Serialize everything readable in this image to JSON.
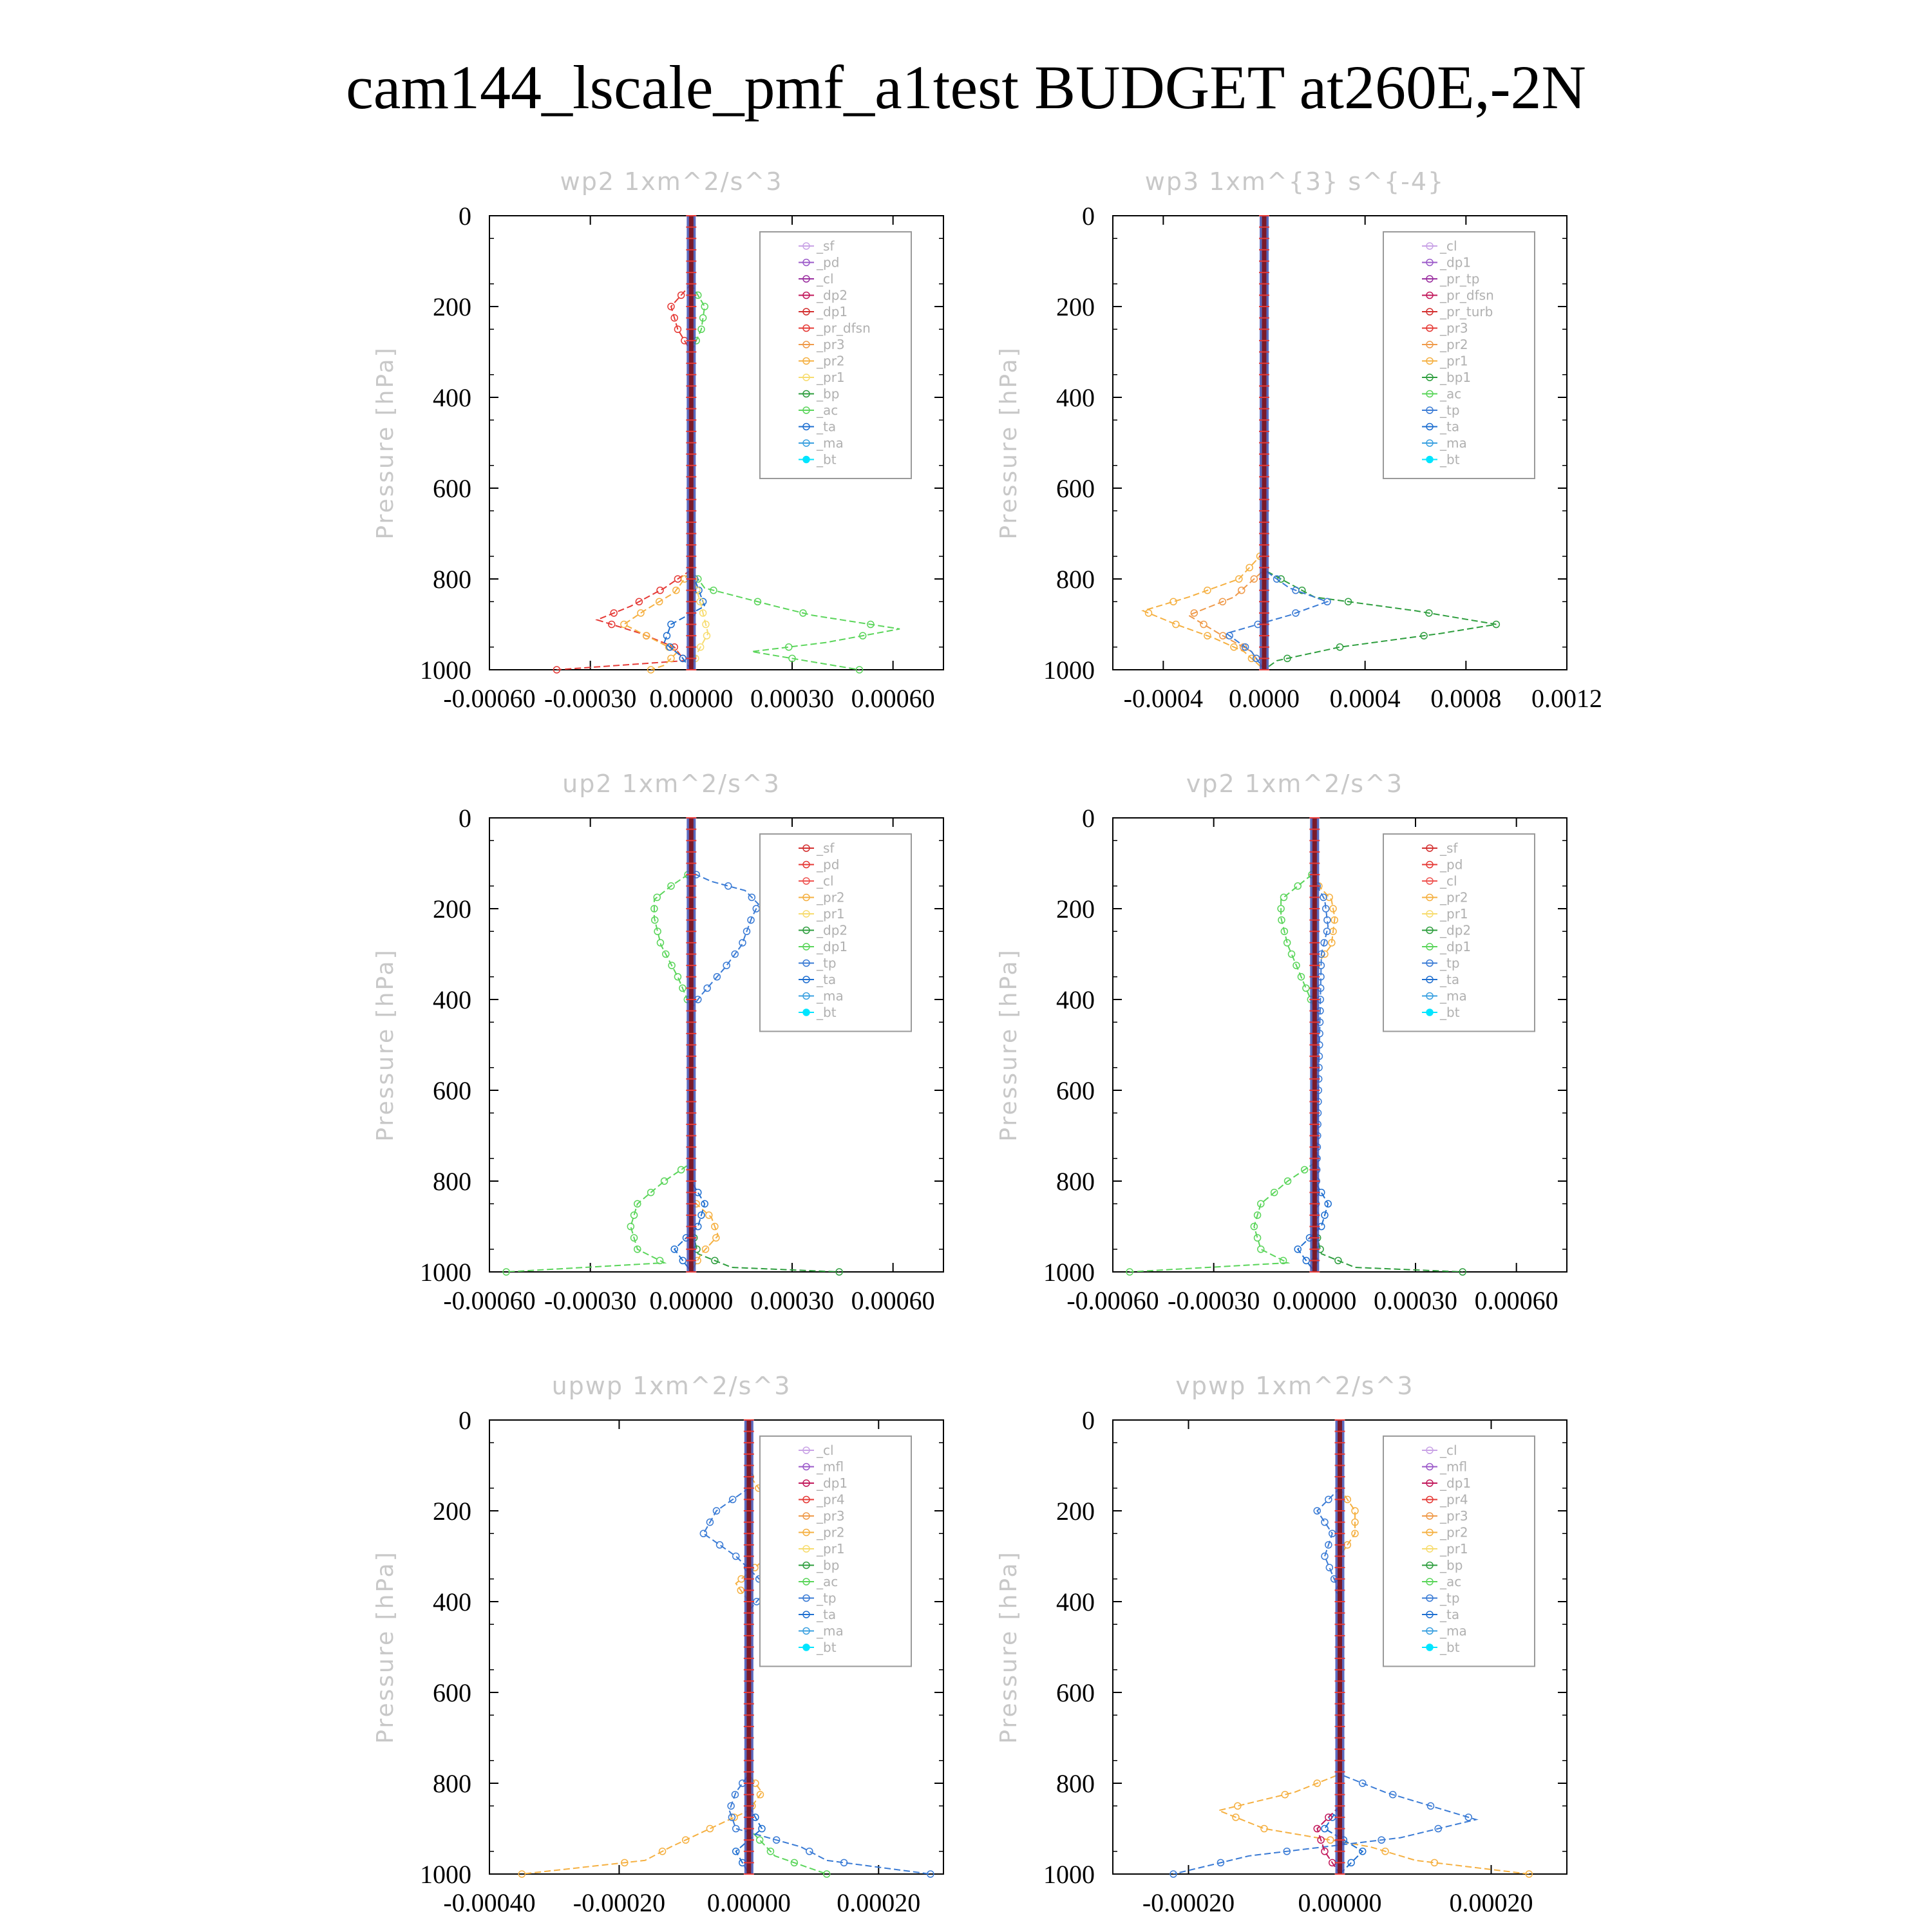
{
  "title": "cam144_lscale_pmf_a1test  BUDGET at260E,-2N",
  "colors": {
    "frame": "#000000",
    "legend_border": "#9a9a9a",
    "legend_text": "#b0b0b0",
    "panel_title": "#c8c8c8",
    "zero_line": "#7a1a2a"
  },
  "chart_data": [
    {
      "type": "line",
      "panel_title": "wp2   1xm^2/s^3",
      "ylabel": "Pressure [hPa]",
      "ylim": [
        1000,
        0
      ],
      "xlim": [
        -0.0006,
        0.00075
      ],
      "xticks": [
        "-0.00060",
        "-0.00030",
        "0.00000",
        "0.00030",
        "0.00060"
      ],
      "xtick_values": [
        -0.0006,
        -0.0003,
        0.0,
        0.0003,
        0.0006
      ],
      "yticks": [
        "0",
        "200",
        "400",
        "600",
        "800",
        "1000"
      ],
      "legend": [
        "_sf",
        "_pd",
        "_cl",
        "_dp2",
        "_dp1",
        "_pr_dfsn",
        "_pr3",
        "_pr2",
        "_pr1",
        "_bp",
        "_ac",
        "_ta",
        "_ma",
        "_bt"
      ],
      "legend_colors": [
        "#c9a3e6",
        "#9b59c9",
        "#9b2fa0",
        "#c2185b",
        "#d32f2f",
        "#e53935",
        "#ef9a4a",
        "#f5b041",
        "#f7dc6f",
        "#2e9e3e",
        "#5ad55a",
        "#1f6fd0",
        "#3aa0e0",
        "#00e5ff"
      ],
      "series": [
        {
          "name": "_dp1",
          "color": "#e53935",
          "pressure": [
            0,
            150,
            200,
            250,
            300,
            780,
            820,
            860,
            890,
            920,
            950,
            980,
            1000
          ],
          "values": [
            0,
            0,
            -6e-05,
            -4e-05,
            0,
            0,
            -8e-05,
            -0.00018,
            -0.00028,
            -0.00015,
            -5e-05,
            -2e-05,
            -0.0004
          ]
        },
        {
          "name": "_pr2",
          "color": "#f5b041",
          "pressure": [
            0,
            780,
            830,
            870,
            900,
            930,
            960,
            990,
            1000
          ],
          "values": [
            0,
            0,
            -5e-05,
            -0.00014,
            -0.0002,
            -0.00012,
            -4e-05,
            -8e-05,
            -0.00012
          ]
        },
        {
          "name": "_ac",
          "color": "#5ad55a",
          "pressure": [
            0,
            150,
            200,
            250,
            300,
            780,
            820,
            860,
            880,
            910,
            940,
            960,
            1000
          ],
          "values": [
            0,
            0,
            4e-05,
            3e-05,
            0,
            0,
            4e-05,
            0.00025,
            0.00036,
            0.00062,
            0.0004,
            0.00018,
            0.0005
          ]
        },
        {
          "name": "_ta",
          "color": "#1f6fd0",
          "pressure": [
            0,
            780,
            820,
            860,
            900,
            940,
            970,
            1000
          ],
          "values": [
            0,
            0,
            2e-05,
            4e-05,
            -6e-05,
            -8e-05,
            -3e-05,
            0
          ]
        },
        {
          "name": "_pr1",
          "color": "#f7dc6f",
          "pressure": [
            0,
            780,
            860,
            920,
            960,
            1000
          ],
          "values": [
            0,
            0,
            3e-05,
            5e-05,
            2e-05,
            0
          ]
        }
      ]
    },
    {
      "type": "line",
      "panel_title": "wp3   1xm^{3} s^{-4}",
      "ylabel": "Pressure [hPa]",
      "ylim": [
        1000,
        0
      ],
      "xlim": [
        -0.0006,
        0.0012
      ],
      "xticks": [
        "-0.0004",
        "0.0000",
        "0.0004",
        "0.0008",
        "0.0012"
      ],
      "xtick_values": [
        -0.0004,
        0.0,
        0.0004,
        0.0008,
        0.0012
      ],
      "yticks": [
        "0",
        "200",
        "400",
        "600",
        "800",
        "1000"
      ],
      "legend": [
        "_cl",
        "_dp1",
        "_pr_tp",
        "_pr_dfsn",
        "_pr_turb",
        "_pr3",
        "_pr2",
        "_pr1",
        "_bp1",
        "_ac",
        "_tp",
        "_ta",
        "_ma",
        "_bt"
      ],
      "legend_colors": [
        "#c9a3e6",
        "#9b59c9",
        "#9b2fa0",
        "#c2185b",
        "#d32f2f",
        "#e53935",
        "#ef9a4a",
        "#f5b041",
        "#2e9e3e",
        "#5ad55a",
        "#3a7bd5",
        "#1f6fd0",
        "#3aa0e0",
        "#00e5ff"
      ],
      "series": [
        {
          "name": "_pr2",
          "color": "#f5b041",
          "pressure": [
            0,
            740,
            800,
            840,
            870,
            900,
            930,
            960,
            1000
          ],
          "values": [
            0,
            0,
            -0.0001,
            -0.0003,
            -0.00048,
            -0.00035,
            -0.0002,
            -8e-05,
            0
          ]
        },
        {
          "name": "_pr3",
          "color": "#ef9a4a",
          "pressure": [
            0,
            780,
            840,
            880,
            920,
            960,
            1000
          ],
          "values": [
            0,
            0,
            -0.00012,
            -0.0003,
            -0.00018,
            -5e-05,
            0
          ]
        },
        {
          "name": "_bp1",
          "color": "#2e9e3e",
          "pressure": [
            0,
            780,
            840,
            870,
            900,
            920,
            950,
            980,
            1000
          ],
          "values": [
            0,
            0,
            0.0002,
            0.0006,
            0.00092,
            0.0007,
            0.0003,
            5e-05,
            0
          ]
        },
        {
          "name": "_tp",
          "color": "#3a7bd5",
          "pressure": [
            0,
            780,
            820,
            850,
            880,
            920,
            960,
            1000
          ],
          "values": [
            0,
            0,
            0.0001,
            0.00025,
            0.0001,
            -0.00015,
            -5e-05,
            0
          ]
        }
      ]
    },
    {
      "type": "line",
      "panel_title": "up2   1xm^2/s^3",
      "ylabel": "Pressure [hPa]",
      "ylim": [
        1000,
        0
      ],
      "xlim": [
        -0.0006,
        0.00075
      ],
      "xticks": [
        "-0.00060",
        "-0.00030",
        "0.00000",
        "0.00030",
        "0.00060"
      ],
      "xtick_values": [
        -0.0006,
        -0.0003,
        0.0,
        0.0003,
        0.0006
      ],
      "yticks": [
        "0",
        "200",
        "400",
        "600",
        "800",
        "1000"
      ],
      "legend": [
        "_sf",
        "_pd",
        "_cl",
        "_pr2",
        "_pr1",
        "_dp2",
        "_dp1",
        "_tp",
        "_ta",
        "_ma",
        "_bt"
      ],
      "legend_colors": [
        "#d32f2f",
        "#e53935",
        "#ef5350",
        "#f5b041",
        "#f7dc6f",
        "#2e9e3e",
        "#5ad55a",
        "#3a7bd5",
        "#1f6fd0",
        "#3aa0e0",
        "#00e5ff"
      ],
      "series": [
        {
          "name": "_dp1",
          "color": "#5ad55a",
          "pressure": [
            0,
            120,
            150,
            180,
            220,
            280,
            350,
            420,
            760,
            800,
            850,
            900,
            950,
            980,
            1000
          ],
          "values": [
            0,
            0,
            -6e-05,
            -0.00011,
            -0.00011,
            -9e-05,
            -4e-05,
            0,
            0,
            -8e-05,
            -0.00016,
            -0.00018,
            -0.00016,
            -8e-05,
            -0.00055
          ]
        },
        {
          "name": "_tp",
          "color": "#3a7bd5",
          "pressure": [
            0,
            120,
            140,
            160,
            190,
            220,
            280,
            330,
            390,
            420,
            1000
          ],
          "values": [
            0,
            0,
            6e-05,
            0.00016,
            0.0002,
            0.00018,
            0.00015,
            0.0001,
            3e-05,
            0,
            0
          ]
        },
        {
          "name": "_dp2",
          "color": "#2e9e3e",
          "pressure": [
            0,
            900,
            960,
            990,
            1000
          ],
          "values": [
            0,
            0,
            2e-05,
            0.00012,
            0.00044
          ]
        },
        {
          "name": "_pr2",
          "color": "#f5b041",
          "pressure": [
            0,
            840,
            880,
            920,
            960,
            1000
          ],
          "values": [
            0,
            0,
            6e-05,
            8e-05,
            3e-05,
            0
          ]
        },
        {
          "name": "_ta",
          "color": "#1f6fd0",
          "pressure": [
            0,
            800,
            850,
            900,
            950,
            1000
          ],
          "values": [
            0,
            0,
            4e-05,
            2e-05,
            -5e-05,
            0
          ]
        }
      ]
    },
    {
      "type": "line",
      "panel_title": "vp2   1xm^2/s^3",
      "ylabel": "Pressure [hPa]",
      "ylim": [
        1000,
        0
      ],
      "xlim": [
        -0.0006,
        0.00075
      ],
      "xticks": [
        "-0.00060",
        "-0.00030",
        "0.00000",
        "0.00030",
        "0.00060"
      ],
      "xtick_values": [
        -0.0006,
        -0.0003,
        0.0,
        0.0003,
        0.0006
      ],
      "yticks": [
        "0",
        "200",
        "400",
        "600",
        "800",
        "1000"
      ],
      "legend": [
        "_sf",
        "_pd",
        "_cl",
        "_pr2",
        "_pr1",
        "_dp2",
        "_dp1",
        "_tp",
        "_ta",
        "_ma",
        "_bt"
      ],
      "legend_colors": [
        "#d32f2f",
        "#e53935",
        "#ef5350",
        "#f5b041",
        "#f7dc6f",
        "#2e9e3e",
        "#5ad55a",
        "#3a7bd5",
        "#1f6fd0",
        "#3aa0e0",
        "#00e5ff"
      ],
      "series": [
        {
          "name": "_dp1",
          "color": "#5ad55a",
          "pressure": [
            0,
            120,
            150,
            180,
            220,
            280,
            350,
            420,
            760,
            800,
            850,
            900,
            950,
            980,
            1000
          ],
          "values": [
            0,
            0,
            -5e-05,
            -0.0001,
            -0.0001,
            -8e-05,
            -4e-05,
            0,
            0,
            -8e-05,
            -0.00016,
            -0.00018,
            -0.00016,
            -8e-05,
            -0.00055
          ]
        },
        {
          "name": "_pr2",
          "color": "#f5b041",
          "pressure": [
            0,
            140,
            180,
            220,
            280,
            330,
            1000
          ],
          "values": [
            0,
            0,
            5e-05,
            6e-05,
            5e-05,
            0,
            0
          ]
        },
        {
          "name": "_tp",
          "color": "#3a7bd5",
          "pressure": [
            0,
            140,
            180,
            240,
            300,
            1000
          ],
          "values": [
            0,
            0,
            3e-05,
            4e-05,
            2e-05,
            0
          ]
        },
        {
          "name": "_dp2",
          "color": "#2e9e3e",
          "pressure": [
            0,
            900,
            960,
            990,
            1000
          ],
          "values": [
            0,
            0,
            2e-05,
            0.00012,
            0.00044
          ]
        },
        {
          "name": "_ta",
          "color": "#1f6fd0",
          "pressure": [
            0,
            800,
            850,
            900,
            950,
            1000
          ],
          "values": [
            0,
            0,
            4e-05,
            2e-05,
            -5e-05,
            0
          ]
        }
      ]
    },
    {
      "type": "line",
      "panel_title": "upwp   1xm^2/s^3",
      "ylabel": "Pressure [hPa]",
      "ylim": [
        1000,
        0
      ],
      "xlim": [
        -0.0004,
        0.0003
      ],
      "xticks": [
        "-0.00040",
        "-0.00020",
        "0.00000",
        "0.00020"
      ],
      "xtick_values": [
        -0.0004,
        -0.0002,
        0.0,
        0.0002
      ],
      "yticks": [
        "0",
        "200",
        "400",
        "600",
        "800",
        "1000"
      ],
      "legend": [
        "_cl",
        "_mfl",
        "_dp1",
        "_pr4",
        "_pr3",
        "_pr2",
        "_pr1",
        "_bp",
        "_ac",
        "_tp",
        "_ta",
        "_ma",
        "_bt"
      ],
      "legend_colors": [
        "#c9a3e6",
        "#9b59c9",
        "#c2185b",
        "#e53935",
        "#ef9a4a",
        "#f5b041",
        "#f7dc6f",
        "#2e9e3e",
        "#5ad55a",
        "#3a7bd5",
        "#1f6fd0",
        "#3aa0e0",
        "#00e5ff"
      ],
      "series": [
        {
          "name": "_pr2",
          "color": "#f5b041",
          "pressure": [
            0,
            120,
            160,
            200,
            250,
            300,
            360,
            400,
            780,
            820,
            860,
            900,
            940,
            970,
            1000
          ],
          "values": [
            0,
            0,
            2e-05,
            4e-05,
            6e-05,
            3e-05,
            -2e-05,
            0,
            0,
            2e-05,
            0,
            -6e-05,
            -0.00012,
            -0.00016,
            -0.00035
          ]
        },
        {
          "name": "_tp",
          "color": "#3a7bd5",
          "pressure": [
            0,
            150,
            200,
            250,
            300,
            370,
            420,
            780,
            820,
            860,
            900,
            940,
            970,
            1000
          ],
          "values": [
            0,
            0,
            -5e-05,
            -7e-05,
            -2e-05,
            3e-05,
            0,
            0,
            -2e-05,
            -3e-05,
            -2e-05,
            8e-05,
            0.00012,
            0.00028
          ]
        },
        {
          "name": "_ac",
          "color": "#5ad55a",
          "pressure": [
            0,
            900,
            960,
            1000
          ],
          "values": [
            0,
            0,
            4e-05,
            0.00012
          ]
        },
        {
          "name": "_ta",
          "color": "#1f6fd0",
          "pressure": [
            0,
            850,
            900,
            950,
            1000
          ],
          "values": [
            0,
            0,
            2e-05,
            -2e-05,
            0
          ]
        }
      ]
    },
    {
      "type": "line",
      "panel_title": "vpwp   1xm^2/s^3",
      "ylabel": "Pressure [hPa]",
      "ylim": [
        1000,
        0
      ],
      "xlim": [
        -0.0003,
        0.0003
      ],
      "xticks": [
        "-0.00020",
        "0.00000",
        "0.00020"
      ],
      "xtick_values": [
        -0.0002,
        0.0,
        0.0002
      ],
      "yticks": [
        "0",
        "200",
        "400",
        "600",
        "800",
        "1000"
      ],
      "legend": [
        "_cl",
        "_mfl",
        "_dp1",
        "_pr4",
        "_pr3",
        "_pr2",
        "_pr1",
        "_bp",
        "_ac",
        "_tp",
        "_ta",
        "_ma",
        "_bt"
      ],
      "legend_colors": [
        "#c9a3e6",
        "#9b59c9",
        "#c2185b",
        "#e53935",
        "#ef9a4a",
        "#f5b041",
        "#f7dc6f",
        "#2e9e3e",
        "#5ad55a",
        "#3a7bd5",
        "#1f6fd0",
        "#3aa0e0",
        "#00e5ff"
      ],
      "series": [
        {
          "name": "_pr2",
          "color": "#f5b041",
          "pressure": [
            0,
            150,
            200,
            250,
            300,
            780,
            820,
            860,
            900,
            940,
            970,
            1000
          ],
          "values": [
            0,
            0,
            2e-05,
            2e-05,
            0,
            0,
            -6e-05,
            -0.00016,
            -0.0001,
            4e-05,
            0.0001,
            0.00025
          ]
        },
        {
          "name": "_tp",
          "color": "#3a7bd5",
          "pressure": [
            0,
            150,
            200,
            250,
            300,
            380,
            780,
            820,
            860,
            880,
            920,
            960,
            1000
          ],
          "values": [
            0,
            0,
            -3e-05,
            -1e-05,
            -2e-05,
            0,
            0,
            6e-05,
            0.00014,
            0.00018,
            8e-05,
            -0.00012,
            -0.00022
          ]
        },
        {
          "name": "_ta",
          "color": "#1f6fd0",
          "pressure": [
            0,
            850,
            900,
            950,
            1000
          ],
          "values": [
            0,
            0,
            -2e-05,
            3e-05,
            0
          ]
        },
        {
          "name": "_dp1",
          "color": "#c2185b",
          "pressure": [
            0,
            850,
            900,
            950,
            1000
          ],
          "values": [
            0,
            0,
            -3e-05,
            -2e-05,
            0
          ]
        }
      ]
    }
  ]
}
